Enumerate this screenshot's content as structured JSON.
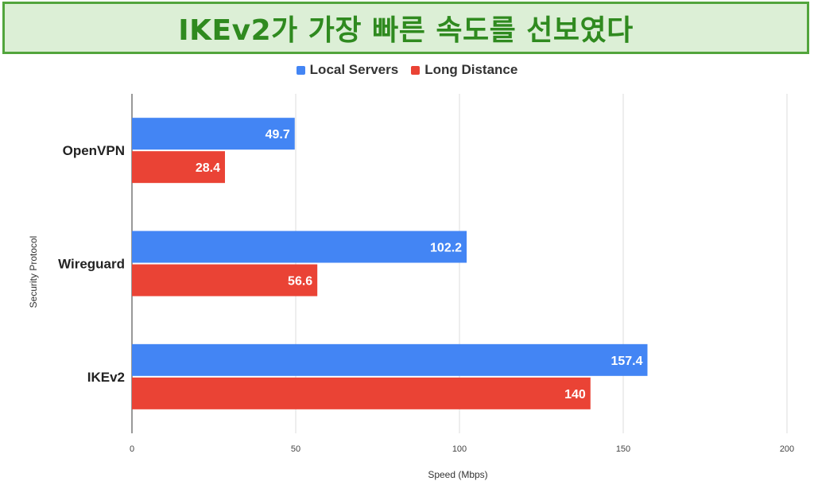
{
  "banner": {
    "title": "IKEv2가 가장 빠른 속도를 선보였다"
  },
  "colors": {
    "local": "#4385f4",
    "long": "#ea4335",
    "banner_bg": "#dcefd6",
    "banner_border": "#52a53c",
    "banner_text": "#2f8a1f",
    "grid": "#dddddd",
    "axis": "#333333"
  },
  "chart_data": {
    "type": "bar",
    "orientation": "horizontal",
    "title": "",
    "xlabel": "Speed (Mbps)",
    "ylabel": "Security Protocol",
    "categories": [
      "OpenVPN",
      "Wireguard",
      "IKEv2"
    ],
    "series": [
      {
        "name": "Local Servers",
        "values": [
          49.7,
          102.2,
          157.4
        ]
      },
      {
        "name": "Long Distance",
        "values": [
          28.4,
          56.6,
          140
        ]
      }
    ],
    "xlim": [
      0,
      200
    ],
    "xticks": [
      0,
      50,
      100,
      150,
      200
    ],
    "grid": true,
    "legend_position": "top-center",
    "data_labels": true
  }
}
